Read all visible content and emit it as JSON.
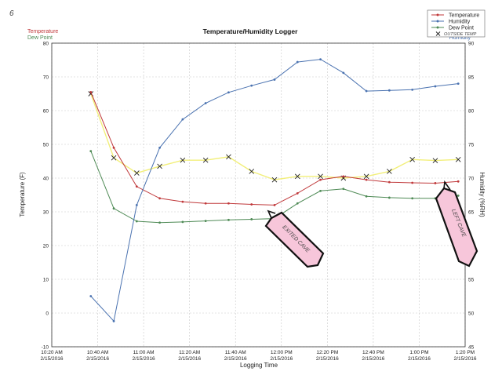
{
  "page": {
    "corner_mark": "6",
    "legend_handwritten": "OUTSIDE TEMP",
    "annotations": [
      "EXITED CAVE",
      "LEFT CAVE"
    ]
  },
  "chart_data": {
    "type": "line",
    "title": "Temperature/Humidity Logger",
    "xlabel": "Logging Time",
    "ylabel_left": "Temperature (F)",
    "ylabel_right": "Humidity (%RH)",
    "left_header": [
      "Temperature",
      "Dew Point"
    ],
    "right_header": "Humidity",
    "ylim_left": [
      -10,
      80
    ],
    "ylim_right": [
      45,
      90
    ],
    "yticks_left": [
      "-10",
      "0",
      "10",
      "20",
      "30",
      "40",
      "50",
      "60",
      "70",
      "80"
    ],
    "yticks_right": [
      "45",
      "50",
      "55",
      "60",
      "65",
      "70",
      "75",
      "80",
      "85",
      "90"
    ],
    "xticks": [
      {
        "time": "10:20 AM",
        "date": "2/15/2016"
      },
      {
        "time": "10:40 AM",
        "date": "2/15/2016"
      },
      {
        "time": "11:00 AM",
        "date": "2/15/2016"
      },
      {
        "time": "11:20 AM",
        "date": "2/15/2016"
      },
      {
        "time": "11:40 AM",
        "date": "2/15/2016"
      },
      {
        "time": "12:00 PM",
        "date": "2/15/2016"
      },
      {
        "time": "12:20 PM",
        "date": "2/15/2016"
      },
      {
        "time": "12:40 PM",
        "date": "2/15/2016"
      },
      {
        "time": "1:00 PM",
        "date": "2/15/2016"
      },
      {
        "time": "1:20 PM",
        "date": "2/15/2016"
      }
    ],
    "x": [
      "10:35 AM",
      "10:41 AM",
      "10:47 AM",
      "10:53 AM",
      "10:59 AM",
      "11:05 AM",
      "11:11 AM",
      "11:17 AM",
      "11:23 AM",
      "11:29 AM",
      "11:35 AM",
      "11:41 AM",
      "11:47 AM",
      "11:53 AM",
      "11:59 AM",
      "12:05 PM",
      "12:11 PM",
      "12:17 PM",
      "12:23 PM",
      "12:29 PM",
      "12:35 PM",
      "12:41 PM",
      "12:47 PM",
      "12:53 PM",
      "12:59 PM",
      "1:05 PM",
      "1:11 PM",
      "1:17 PM"
    ],
    "series": [
      {
        "name": "Temperature",
        "axis": "left",
        "color": "#c0393b",
        "x": [
          "10:37 AM",
          "10:47 AM",
          "10:57 AM",
          "11:07 AM",
          "11:17 AM",
          "11:27 AM",
          "11:37 AM",
          "11:47 AM",
          "11:57 AM",
          "12:07 PM",
          "12:17 PM",
          "12:27 PM",
          "12:37 PM",
          "12:47 PM",
          "12:57 PM",
          "1:07 PM",
          "1:17 PM"
        ],
        "values": [
          65.5,
          49,
          37.5,
          34,
          33,
          32.5,
          32.5,
          32.2,
          32,
          35.5,
          39.5,
          40.5,
          39.5,
          38.8,
          38.6,
          38.5,
          39
        ]
      },
      {
        "name": "Humidity",
        "axis": "right",
        "color": "#4a72b0",
        "x": [
          "10:37 AM",
          "10:47 AM",
          "10:57 AM",
          "11:07 AM",
          "11:17 AM",
          "11:27 AM",
          "11:37 AM",
          "11:47 AM",
          "11:57 AM",
          "12:07 PM",
          "12:17 PM",
          "12:27 PM",
          "12:37 PM",
          "12:47 PM",
          "12:57 PM",
          "1:07 PM",
          "1:17 PM"
        ],
        "values": [
          52.5,
          48.8,
          66,
          74.5,
          78.7,
          81.1,
          82.7,
          83.7,
          84.6,
          87.2,
          87.6,
          85.6,
          82.9,
          83,
          83.1,
          83.6,
          84
        ]
      },
      {
        "name": "Dew Point",
        "axis": "left",
        "color": "#4e8a55",
        "x": [
          "10:37 AM",
          "10:47 AM",
          "10:57 AM",
          "11:07 AM",
          "11:17 AM",
          "11:27 AM",
          "11:37 AM",
          "11:47 AM",
          "11:57 AM",
          "12:07 PM",
          "12:17 PM",
          "12:27 PM",
          "12:37 PM",
          "12:47 PM",
          "12:57 PM",
          "1:07 PM",
          "1:17 PM"
        ],
        "values": [
          48,
          31,
          27.2,
          26.8,
          27,
          27.3,
          27.6,
          27.8,
          28,
          32.5,
          36.2,
          36.8,
          34.6,
          34.2,
          34,
          34,
          34.8
        ]
      },
      {
        "name": "OUTSIDE TEMP",
        "axis": "left",
        "color": "#f2ef7a",
        "marker": "x",
        "x": [
          "10:37 AM",
          "10:47 AM",
          "10:57 AM",
          "11:07 AM",
          "11:17 AM",
          "11:27 AM",
          "11:37 AM",
          "11:47 AM",
          "11:57 AM",
          "12:07 PM",
          "12:17 PM",
          "12:27 PM",
          "12:37 PM",
          "12:47 PM",
          "12:57 PM",
          "1:07 PM",
          "1:17 PM"
        ],
        "values": [
          65,
          46,
          41.5,
          43.5,
          45.3,
          45.3,
          46.3,
          42,
          39.5,
          40.5,
          40.5,
          40,
          40.5,
          42,
          45.5,
          45.2,
          45.5
        ]
      }
    ],
    "legend": [
      "Temperature",
      "Humidity",
      "Dew Point",
      "OUTSIDE TEMP"
    ],
    "legend_position": "top-right",
    "grid": true
  }
}
